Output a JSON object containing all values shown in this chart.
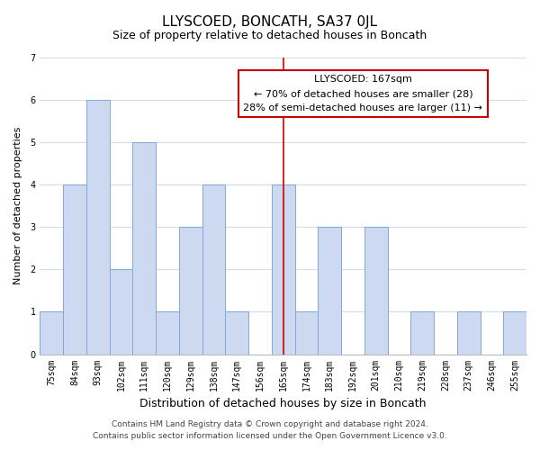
{
  "title": "LLYSCOED, BONCATH, SA37 0JL",
  "subtitle": "Size of property relative to detached houses in Boncath",
  "xlabel": "Distribution of detached houses by size in Boncath",
  "ylabel": "Number of detached properties",
  "bins": [
    75,
    84,
    93,
    102,
    111,
    120,
    129,
    138,
    147,
    156,
    165,
    174,
    183,
    192,
    201,
    210,
    219,
    228,
    237,
    246,
    255
  ],
  "counts": [
    1,
    4,
    6,
    2,
    5,
    1,
    3,
    4,
    1,
    0,
    4,
    1,
    3,
    0,
    3,
    0,
    1,
    0,
    1,
    0,
    1
  ],
  "bar_color": "#ccd9f0",
  "bar_edge_color": "#7fa8d6",
  "red_line_x": 165,
  "ylim": [
    0,
    7
  ],
  "yticks": [
    0,
    1,
    2,
    3,
    4,
    5,
    6,
    7
  ],
  "annotation_title": "LLYSCOED: 167sqm",
  "annotation_line1": "← 70% of detached houses are smaller (28)",
  "annotation_line2": "28% of semi-detached houses are larger (11) →",
  "annotation_box_color": "#ffffff",
  "annotation_box_edgecolor": "#cc0000",
  "footer_line1": "Contains HM Land Registry data © Crown copyright and database right 2024.",
  "footer_line2": "Contains public sector information licensed under the Open Government Licence v3.0.",
  "title_fontsize": 11,
  "subtitle_fontsize": 9,
  "axis_label_fontsize": 8,
  "tick_fontsize": 7,
  "annotation_fontsize": 8,
  "footer_fontsize": 6.5,
  "background_color": "#ffffff",
  "grid_color": "#d4dce8"
}
